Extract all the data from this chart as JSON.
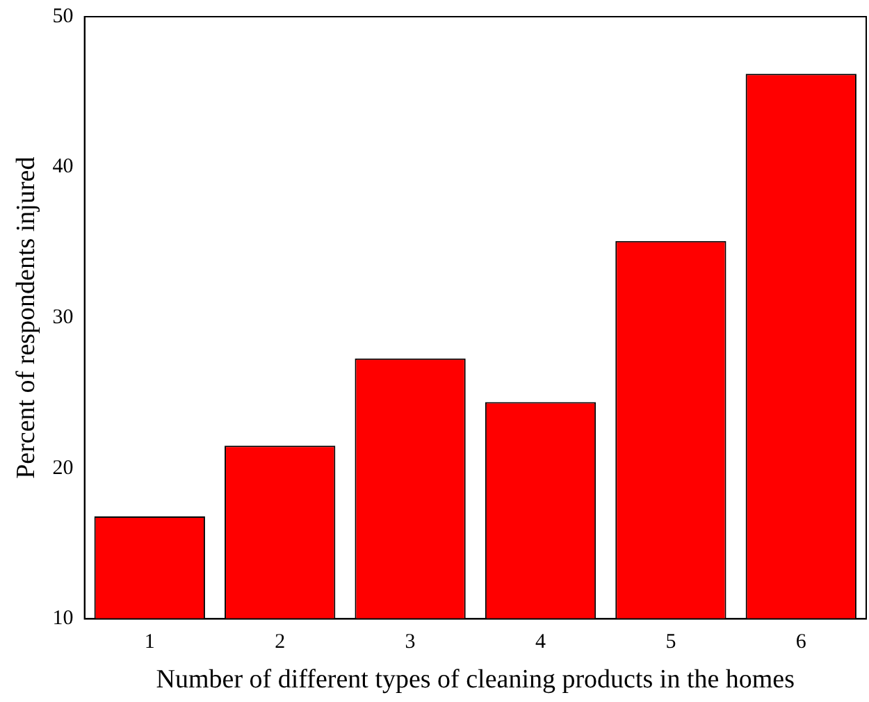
{
  "chart_data": {
    "type": "bar",
    "xlabel": "Number of different types of cleaning products in the homes",
    "ylabel": "Percent of respondents injured",
    "categories": [
      "1",
      "2",
      "3",
      "4",
      "5",
      "6"
    ],
    "values": [
      16.8,
      21.5,
      27.3,
      24.4,
      35.1,
      46.2
    ],
    "color": "#ff0000",
    "ylim": [
      10,
      50
    ],
    "yticks": [
      10,
      20,
      30,
      40,
      50
    ],
    "grid": false,
    "legend": false
  }
}
